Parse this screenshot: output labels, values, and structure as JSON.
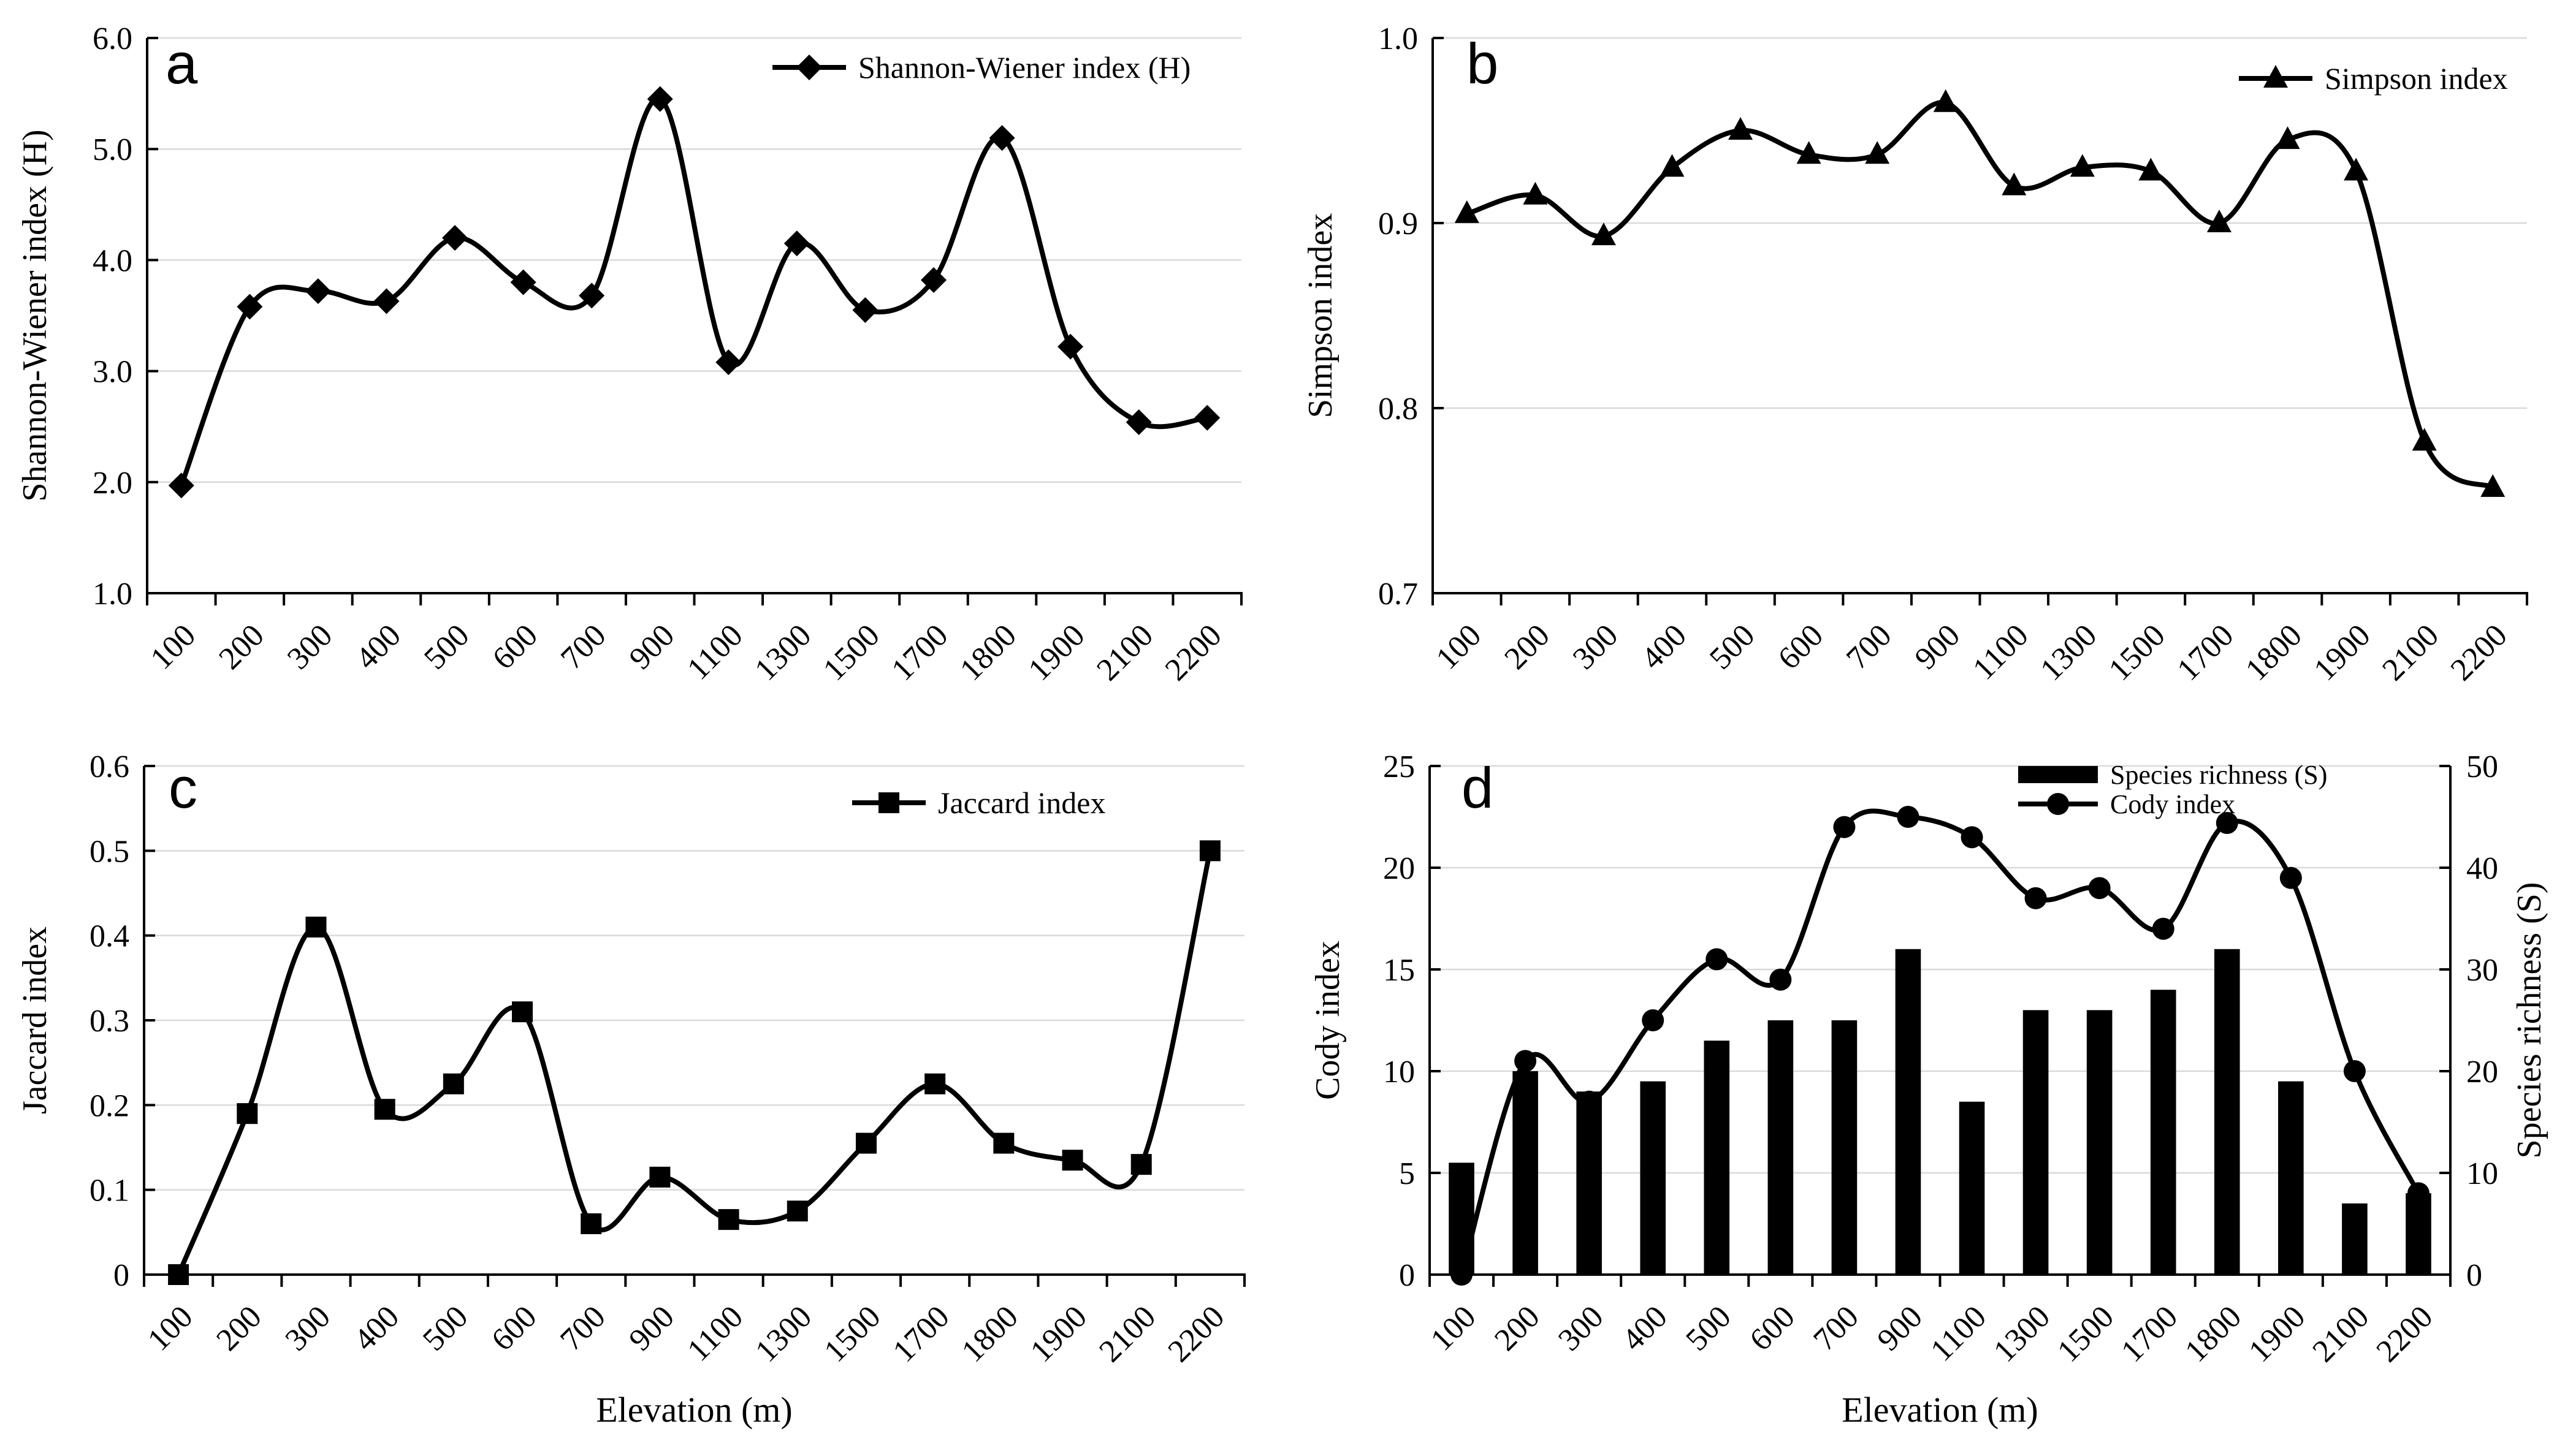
{
  "figure": {
    "background_color": "#ffffff",
    "axis_color": "#000000",
    "grid_color": "#d9d9d9",
    "series_color": "#000000",
    "panel_letters": [
      "a",
      "b",
      "c",
      "d"
    ]
  },
  "chart_data": [
    {
      "panel_label": "a",
      "type": "line",
      "title": "",
      "xlabel": "",
      "ylabel": "Shannon-Wiener index (H)",
      "ylim": [
        1.0,
        6.0
      ],
      "yticks": [
        {
          "v": 1.0,
          "label": "1.0"
        },
        {
          "v": 2.0,
          "label": "2.0"
        },
        {
          "v": 3.0,
          "label": "3.0"
        },
        {
          "v": 4.0,
          "label": "4.0"
        },
        {
          "v": 5.0,
          "label": "5.0"
        },
        {
          "v": 6.0,
          "label": "6.0"
        }
      ],
      "categories": [
        "100",
        "200",
        "300",
        "400",
        "500",
        "600",
        "700",
        "900",
        "1100",
        "1300",
        "1500",
        "1700",
        "1800",
        "1900",
        "2100",
        "2200"
      ],
      "grid": true,
      "legend_position": "top-right",
      "series": [
        {
          "name": "Shannon-Wiener index (H)",
          "type": "line",
          "marker": "diamond",
          "axis": "left",
          "smooth": true,
          "values": [
            1.97,
            3.58,
            3.72,
            3.63,
            4.2,
            3.8,
            3.68,
            5.45,
            3.08,
            4.15,
            3.55,
            3.82,
            5.1,
            3.22,
            2.54,
            2.58
          ]
        }
      ]
    },
    {
      "panel_label": "b",
      "type": "line",
      "title": "",
      "xlabel": "",
      "ylabel": "Simpson index",
      "ylim": [
        0.7,
        1.0
      ],
      "yticks": [
        {
          "v": 0.7,
          "label": "0.7"
        },
        {
          "v": 0.8,
          "label": "0.8"
        },
        {
          "v": 0.9,
          "label": "0.9"
        },
        {
          "v": 1.0,
          "label": "1.0"
        }
      ],
      "categories": [
        "100",
        "200",
        "300",
        "400",
        "500",
        "600",
        "700",
        "900",
        "1100",
        "1300",
        "1500",
        "1700",
        "1800",
        "1900",
        "2100",
        "2200"
      ],
      "grid": true,
      "legend_position": "top-right",
      "series": [
        {
          "name": "Simpson index",
          "type": "line",
          "marker": "triangle",
          "axis": "left",
          "smooth": true,
          "values": [
            0.905,
            0.915,
            0.893,
            0.93,
            0.95,
            0.937,
            0.937,
            0.965,
            0.92,
            0.93,
            0.928,
            0.9,
            0.945,
            0.928,
            0.782,
            0.757
          ]
        }
      ]
    },
    {
      "panel_label": "c",
      "type": "line",
      "title": "",
      "xlabel": "Elevation (m)",
      "ylabel": "Jaccard index",
      "ylim": [
        0,
        0.6
      ],
      "yticks": [
        {
          "v": 0,
          "label": "0"
        },
        {
          "v": 0.1,
          "label": "0.1"
        },
        {
          "v": 0.2,
          "label": "0.2"
        },
        {
          "v": 0.3,
          "label": "0.3"
        },
        {
          "v": 0.4,
          "label": "0.4"
        },
        {
          "v": 0.5,
          "label": "0.5"
        },
        {
          "v": 0.6,
          "label": "0.6"
        }
      ],
      "categories": [
        "100",
        "200",
        "300",
        "400",
        "500",
        "600",
        "700",
        "900",
        "1100",
        "1300",
        "1500",
        "1700",
        "1800",
        "1900",
        "2100",
        "2200"
      ],
      "grid": true,
      "legend_position": "top-right",
      "series": [
        {
          "name": "Jaccard index",
          "type": "line",
          "marker": "square",
          "axis": "left",
          "smooth": true,
          "values": [
            0,
            0.19,
            0.41,
            0.195,
            0.225,
            0.31,
            0.06,
            0.115,
            0.065,
            0.075,
            0.155,
            0.225,
            0.155,
            0.135,
            0.13,
            0.5
          ]
        }
      ]
    },
    {
      "panel_label": "d",
      "type": "combo",
      "title": "",
      "xlabel": "Elevation (m)",
      "ylabel": "Cody index",
      "ylabel_right": "Species richness (S)",
      "ylim": [
        0,
        25
      ],
      "ylim_right": [
        0,
        50
      ],
      "yticks": [
        {
          "v": 0,
          "label": "0"
        },
        {
          "v": 5,
          "label": "5"
        },
        {
          "v": 10,
          "label": "10"
        },
        {
          "v": 15,
          "label": "15"
        },
        {
          "v": 20,
          "label": "20"
        },
        {
          "v": 25,
          "label": "25"
        }
      ],
      "yticks_right": [
        {
          "v": 0,
          "label": "0"
        },
        {
          "v": 10,
          "label": "10"
        },
        {
          "v": 20,
          "label": "20"
        },
        {
          "v": 30,
          "label": "30"
        },
        {
          "v": 40,
          "label": "40"
        },
        {
          "v": 50,
          "label": "50"
        }
      ],
      "categories": [
        "100",
        "200",
        "300",
        "400",
        "500",
        "600",
        "700",
        "900",
        "1100",
        "1300",
        "1500",
        "1700",
        "1800",
        "1900",
        "2100",
        "2200"
      ],
      "grid": true,
      "legend_position": "top-right",
      "series": [
        {
          "name": "Species richness (S)",
          "type": "bar",
          "axis": "right",
          "values": [
            11,
            20,
            18,
            19,
            23,
            25,
            25,
            32,
            17,
            26,
            26,
            28,
            32,
            19,
            7,
            8
          ]
        },
        {
          "name": "Cody index",
          "type": "line",
          "marker": "circle",
          "axis": "left",
          "smooth": true,
          "values": [
            0,
            10.5,
            8.5,
            12.5,
            15.5,
            14.5,
            22,
            22.5,
            21.5,
            18.5,
            19,
            17,
            22.2,
            19.5,
            10,
            4
          ]
        }
      ]
    }
  ]
}
